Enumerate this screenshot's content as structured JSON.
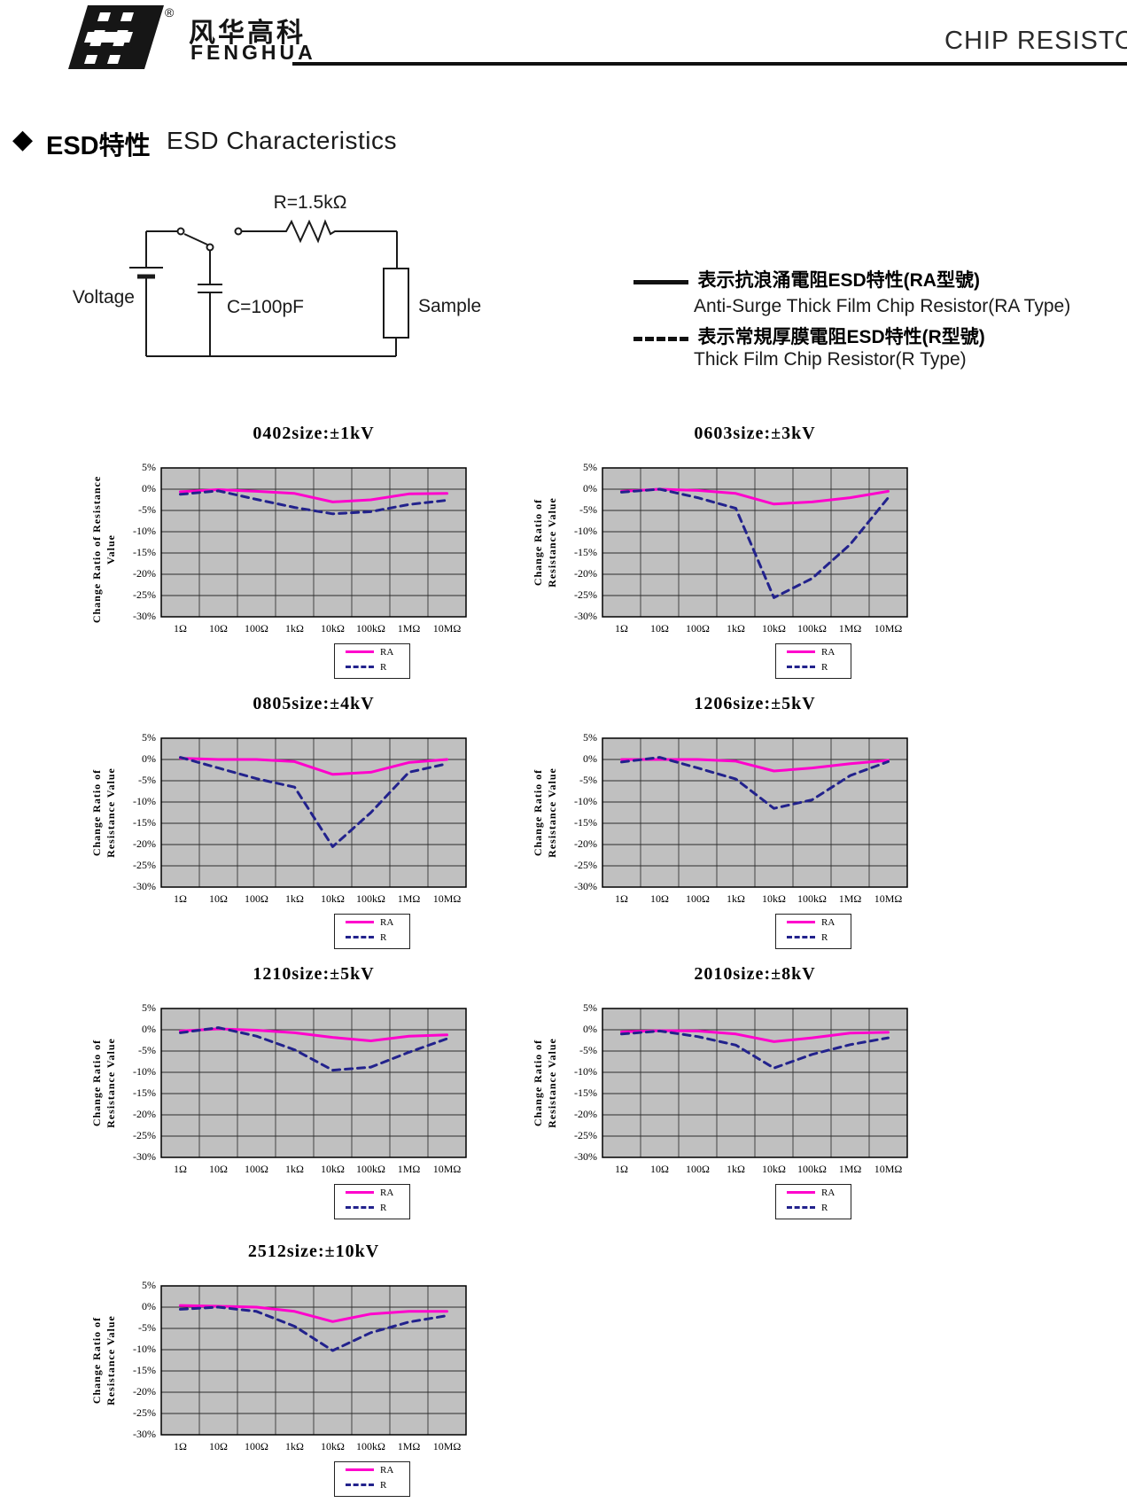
{
  "header": {
    "logo_cn": "风华高科",
    "logo_en": "FENGHUA",
    "registered": "®",
    "product": "CHIP RESISTO"
  },
  "section": {
    "marker": "◆",
    "title_cn": "ESD特性",
    "title_en": "ESD Characteristics"
  },
  "circuit": {
    "resistor_label": "R=1.5kΩ",
    "voltage_label": "Voltage",
    "cap_label": "C=100pF",
    "sample_label": "Sample"
  },
  "line_key": {
    "solid_cn": "表示抗浪涌電阻ESD特性(RA型號)",
    "solid_en": "Anti-Surge Thick Film Chip Resistor(RA Type)",
    "dashed_cn": "表示常規厚膜電阻ESD特性(R型號)",
    "dashed_en": "Thick Film Chip Resistor(R Type)"
  },
  "colors": {
    "ra_line": "#FF00CC",
    "r_line": "#22228C",
    "plot_bg": "#C0C0C0",
    "grid_h": "#2b2b2b",
    "grid_v": "#5a5a5a"
  },
  "chart_data": [
    {
      "type": "line",
      "title": "0402size:±1kV",
      "ylabel": "Change Ratio of Resistance Value",
      "ylabel_lines": [
        "Change Ratio of  Resistance Value"
      ],
      "categories": [
        "1Ω",
        "10Ω",
        "100Ω",
        "1kΩ",
        "10kΩ",
        "100kΩ",
        "1MΩ",
        "10MΩ"
      ],
      "yticks": [
        "5%",
        "0%",
        "-5%",
        "-10%",
        "-15%",
        "-20%",
        "-25%",
        "-30%"
      ],
      "ylim": [
        -30,
        5
      ],
      "grid": true,
      "legend_position": "below-right",
      "series": [
        {
          "name": "RA",
          "style": "solid",
          "values": [
            -0.6,
            -0.1,
            -0.5,
            -1.0,
            -3.0,
            -2.5,
            -1.1,
            -1.0
          ]
        },
        {
          "name": "R",
          "style": "dashed",
          "values": [
            -1.2,
            -0.4,
            -2.4,
            -4.3,
            -5.8,
            -5.3,
            -3.6,
            -2.6
          ]
        }
      ]
    },
    {
      "type": "line",
      "title": "0603size:±3kV",
      "ylabel": "Change Ratio of Resistance Value",
      "ylabel_lines": [
        "Change Ratio of",
        "Resistance Value"
      ],
      "categories": [
        "1Ω",
        "10Ω",
        "100Ω",
        "1kΩ",
        "10kΩ",
        "100kΩ",
        "1MΩ",
        "10MΩ"
      ],
      "yticks": [
        "5%",
        "0%",
        "-5%",
        "-10%",
        "-15%",
        "-20%",
        "-25%",
        "-30%"
      ],
      "ylim": [
        -30,
        5
      ],
      "grid": true,
      "legend_position": "below-right",
      "series": [
        {
          "name": "RA",
          "style": "solid",
          "values": [
            -0.5,
            0,
            -0.3,
            -1.0,
            -3.5,
            -3.0,
            -2.0,
            -0.5
          ]
        },
        {
          "name": "R",
          "style": "dashed",
          "values": [
            -0.7,
            0,
            -2.0,
            -4.5,
            -25.5,
            -21.0,
            -13.0,
            -2.0
          ]
        }
      ]
    },
    {
      "type": "line",
      "title": "0805size:±4kV",
      "ylabel": "Change Ratio of Resistance Value",
      "ylabel_lines": [
        "Change Ratio of",
        "Resistance Value"
      ],
      "categories": [
        "1Ω",
        "10Ω",
        "100Ω",
        "1kΩ",
        "10kΩ",
        "100kΩ",
        "1MΩ",
        "10MΩ"
      ],
      "yticks": [
        "5%",
        "0%",
        "-5%",
        "-10%",
        "-15%",
        "-20%",
        "-25%",
        "-30%"
      ],
      "ylim": [
        -30,
        5
      ],
      "grid": true,
      "legend_position": "below-right",
      "series": [
        {
          "name": "RA",
          "style": "solid",
          "values": [
            0.3,
            0,
            0,
            -0.5,
            -3.5,
            -3.0,
            -0.7,
            0
          ]
        },
        {
          "name": "R",
          "style": "dashed",
          "values": [
            0.5,
            -2.0,
            -4.5,
            -6.5,
            -20.5,
            -12.5,
            -3.0,
            -1.0
          ]
        }
      ]
    },
    {
      "type": "line",
      "title": "1206size:±5kV",
      "ylabel": "Change Ratio of Resistance Value",
      "ylabel_lines": [
        "Change Ratio of",
        "Resistance Value"
      ],
      "categories": [
        "1Ω",
        "10Ω",
        "100Ω",
        "1kΩ",
        "10kΩ",
        "100kΩ",
        "1MΩ",
        "10MΩ"
      ],
      "yticks": [
        "5%",
        "0%",
        "-5%",
        "-10%",
        "-15%",
        "-20%",
        "-25%",
        "-30%"
      ],
      "ylim": [
        -30,
        5
      ],
      "grid": true,
      "legend_position": "below-right",
      "series": [
        {
          "name": "RA",
          "style": "solid",
          "values": [
            0,
            0,
            0,
            -0.4,
            -2.7,
            -2.0,
            -1.0,
            -0.2
          ]
        },
        {
          "name": "R",
          "style": "dashed",
          "values": [
            -0.6,
            0.5,
            -2.0,
            -4.6,
            -11.5,
            -9.5,
            -3.8,
            -0.5
          ]
        }
      ]
    },
    {
      "type": "line",
      "title": "1210size:±5kV",
      "ylabel": "Change Ratio of Resistance Value",
      "ylabel_lines": [
        "Change Ratio of",
        "Resistance Value"
      ],
      "categories": [
        "1Ω",
        "10Ω",
        "100Ω",
        "1kΩ",
        "10kΩ",
        "100kΩ",
        "1MΩ",
        "10MΩ"
      ],
      "yticks": [
        "5%",
        "0%",
        "-5%",
        "-10%",
        "-15%",
        "-20%",
        "-25%",
        "-30%"
      ],
      "ylim": [
        -30,
        5
      ],
      "grid": true,
      "legend_position": "below-right",
      "series": [
        {
          "name": "RA",
          "style": "solid",
          "values": [
            -0.3,
            0.2,
            -0.1,
            -0.7,
            -1.8,
            -2.6,
            -1.5,
            -1.2
          ]
        },
        {
          "name": "R",
          "style": "dashed",
          "values": [
            -0.7,
            0.5,
            -1.5,
            -4.7,
            -9.5,
            -8.8,
            -5.3,
            -2.1
          ]
        }
      ]
    },
    {
      "type": "line",
      "title": "2010size:±8kV",
      "ylabel": "Change Ratio of Resistance Value",
      "ylabel_lines": [
        "Change Ratio of",
        "Resistance Value"
      ],
      "categories": [
        "1Ω",
        "10Ω",
        "100Ω",
        "1kΩ",
        "10kΩ",
        "100kΩ",
        "1MΩ",
        "10MΩ"
      ],
      "yticks": [
        "5%",
        "0%",
        "-5%",
        "-10%",
        "-15%",
        "-20%",
        "-25%",
        "-30%"
      ],
      "ylim": [
        -30,
        5
      ],
      "grid": true,
      "legend_position": "below-right",
      "series": [
        {
          "name": "RA",
          "style": "solid",
          "values": [
            -0.5,
            -0.2,
            -0.3,
            -1.0,
            -2.8,
            -1.9,
            -0.8,
            -0.6
          ]
        },
        {
          "name": "R",
          "style": "dashed",
          "values": [
            -1.0,
            -0.3,
            -1.6,
            -3.6,
            -9.0,
            -5.8,
            -3.5,
            -1.9
          ]
        }
      ]
    },
    {
      "type": "line",
      "title": "2512size:±10kV",
      "ylabel": "Change Ratio of Resistance Value",
      "ylabel_lines": [
        "Change Ratio of",
        "Resistance Value"
      ],
      "categories": [
        "1Ω",
        "10Ω",
        "100Ω",
        "1kΩ",
        "10kΩ",
        "100kΩ",
        "1MΩ",
        "10MΩ"
      ],
      "yticks": [
        "5%",
        "0%",
        "-5%",
        "-10%",
        "-15%",
        "-20%",
        "-25%",
        "-30%"
      ],
      "ylim": [
        -30,
        5
      ],
      "grid": true,
      "legend_position": "below-right",
      "series": [
        {
          "name": "RA",
          "style": "solid",
          "values": [
            0.4,
            0.2,
            0,
            -1.0,
            -3.4,
            -1.6,
            -1.0,
            -1.0
          ]
        },
        {
          "name": "R",
          "style": "dashed",
          "values": [
            -0.5,
            0,
            -1.0,
            -4.5,
            -10.2,
            -6.0,
            -3.5,
            -2.0
          ]
        }
      ]
    }
  ]
}
